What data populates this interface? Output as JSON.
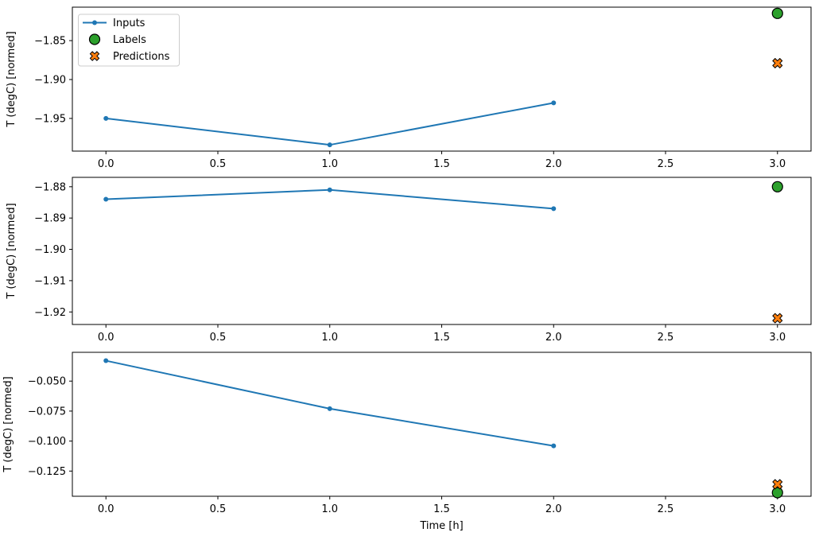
{
  "figure": {
    "xlabel": "Time [h]",
    "ylabel": "T (degC) [normed]",
    "background": "#ffffff",
    "spine_color": "#000000",
    "text_color": "#000000"
  },
  "legend": {
    "position": "upper-left",
    "border_color": "#cccccc",
    "background": "#ffffff",
    "items": [
      {
        "label": "Inputs",
        "marker": "line-dot",
        "color": "#1f77b4",
        "edge_color": "#1f77b4"
      },
      {
        "label": "Labels",
        "marker": "circle",
        "color": "#2ca02c",
        "edge_color": "#000000"
      },
      {
        "label": "Predictions",
        "marker": "x-cross",
        "color": "#ff7f0e",
        "edge_color": "#000000"
      }
    ]
  },
  "chart_data": [
    {
      "type": "line",
      "title": "",
      "xlabel": "",
      "ylabel": "T (degC) [normed]",
      "xlim": [
        -0.15,
        3.15
      ],
      "ylim": [
        -1.992,
        -1.807
      ],
      "grid": false,
      "xticks": [
        0.0,
        0.5,
        1.0,
        1.5,
        2.0,
        2.5,
        3.0
      ],
      "xtick_labels": [
        "0.0",
        "0.5",
        "1.0",
        "1.5",
        "2.0",
        "2.5",
        "3.0"
      ],
      "yticks": [
        -1.85,
        -1.9,
        -1.95
      ],
      "ytick_labels": [
        "−1.85",
        "−1.90",
        "−1.95"
      ],
      "series": [
        {
          "name": "Inputs",
          "kind": "line",
          "color": "#1f77b4",
          "x": [
            0,
            1,
            2
          ],
          "y": [
            -1.95,
            -1.984,
            -1.93
          ]
        },
        {
          "name": "Labels",
          "kind": "scatter-circle",
          "color": "#2ca02c",
          "x": [
            3
          ],
          "y": [
            -1.815
          ]
        },
        {
          "name": "Predictions",
          "kind": "scatter-x",
          "color": "#ff7f0e",
          "x": [
            3
          ],
          "y": [
            -1.879
          ]
        }
      ]
    },
    {
      "type": "line",
      "title": "",
      "xlabel": "",
      "ylabel": "T (degC) [normed]",
      "xlim": [
        -0.15,
        3.15
      ],
      "ylim": [
        -1.924,
        -1.877
      ],
      "grid": false,
      "xticks": [
        0.0,
        0.5,
        1.0,
        1.5,
        2.0,
        2.5,
        3.0
      ],
      "xtick_labels": [
        "0.0",
        "0.5",
        "1.0",
        "1.5",
        "2.0",
        "2.5",
        "3.0"
      ],
      "yticks": [
        -1.88,
        -1.89,
        -1.9,
        -1.91,
        -1.92
      ],
      "ytick_labels": [
        "−1.88",
        "−1.89",
        "−1.90",
        "−1.91",
        "−1.92"
      ],
      "series": [
        {
          "name": "Inputs",
          "kind": "line",
          "color": "#1f77b4",
          "x": [
            0,
            1,
            2
          ],
          "y": [
            -1.884,
            -1.881,
            -1.887
          ]
        },
        {
          "name": "Labels",
          "kind": "scatter-circle",
          "color": "#2ca02c",
          "x": [
            3
          ],
          "y": [
            -1.88
          ]
        },
        {
          "name": "Predictions",
          "kind": "scatter-x",
          "color": "#ff7f0e",
          "x": [
            3
          ],
          "y": [
            -1.922
          ]
        }
      ]
    },
    {
      "type": "line",
      "title": "",
      "xlabel": "Time [h]",
      "ylabel": "T (degC) [normed]",
      "xlim": [
        -0.15,
        3.15
      ],
      "ylim": [
        -0.146,
        -0.026
      ],
      "grid": false,
      "xticks": [
        0.0,
        0.5,
        1.0,
        1.5,
        2.0,
        2.5,
        3.0
      ],
      "xtick_labels": [
        "0.0",
        "0.5",
        "1.0",
        "1.5",
        "2.0",
        "2.5",
        "3.0"
      ],
      "yticks": [
        -0.05,
        -0.075,
        -0.1,
        -0.125
      ],
      "ytick_labels": [
        "−0.050",
        "−0.075",
        "−0.100",
        "−0.125"
      ],
      "series": [
        {
          "name": "Inputs",
          "kind": "line",
          "color": "#1f77b4",
          "x": [
            0,
            1,
            2
          ],
          "y": [
            -0.033,
            -0.073,
            -0.104
          ]
        },
        {
          "name": "Labels",
          "kind": "scatter-circle",
          "color": "#2ca02c",
          "x": [
            3
          ],
          "y": [
            -0.143
          ]
        },
        {
          "name": "Predictions",
          "kind": "scatter-x",
          "color": "#ff7f0e",
          "x": [
            3
          ],
          "y": [
            -0.136
          ]
        }
      ]
    }
  ]
}
